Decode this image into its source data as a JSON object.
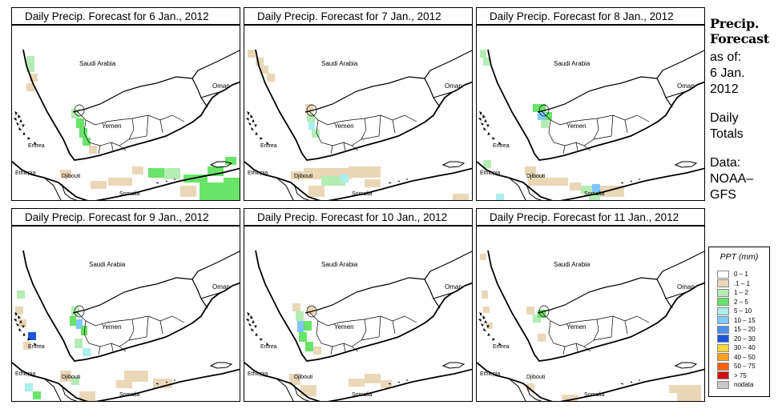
{
  "panels": [
    {
      "title": "Daily Precip. Forecast for  6 Jan., 2012"
    },
    {
      "title": "Daily Precip. Forecast for  7 Jan., 2012"
    },
    {
      "title": "Daily Precip. Forecast for  8 Jan., 2012"
    },
    {
      "title": "Daily Precip. Forecast for  9 Jan., 2012"
    },
    {
      "title": "Daily Precip. Forecast for  10 Jan., 2012"
    },
    {
      "title": "Daily Precip. Forecast for  11 Jan., 2012"
    }
  ],
  "map_labels": {
    "saudi_arabia": "Saudi Arabia",
    "oman": "Oman",
    "yemen": "Yemen",
    "eritrea": "Eritrea",
    "ethiopia": "Ethiopia",
    "djibouti": "Djibouti",
    "somalia": "Somalia"
  },
  "side_panel": {
    "title_line1": "Precip.",
    "title_line2": "Forecast",
    "asof": "as of:",
    "date_line1": "6 Jan.",
    "date_line2": "2012",
    "totals_line1": "Daily",
    "totals_line2": "Totals",
    "data_line1": "Data:",
    "data_line2": "NOAA–",
    "data_line3": "GFS"
  },
  "legend": {
    "title": "PPT (mm)",
    "items": [
      {
        "label": "0 – 1",
        "color": "#ffffff"
      },
      {
        "label": ".1 – 1",
        "color": "#ead7b7"
      },
      {
        "label": "1 – 2",
        "color": "#b4ecb4"
      },
      {
        "label": "2 – 5",
        "color": "#68e468"
      },
      {
        "label": "5 – 10",
        "color": "#aaeeee"
      },
      {
        "label": "10 – 15",
        "color": "#7ec8ff"
      },
      {
        "label": "15 – 20",
        "color": "#4a90f0"
      },
      {
        "label": "20 – 30",
        "color": "#1a56dc"
      },
      {
        "label": "30 – 40",
        "color": "#ffd83c"
      },
      {
        "label": "40 – 50",
        "color": "#ffa020"
      },
      {
        "label": "50 – 75",
        "color": "#ff6010"
      },
      {
        "label": "> 75",
        "color": "#d01010"
      },
      {
        "label": "nodata",
        "color": "#c8c8c8"
      }
    ]
  }
}
